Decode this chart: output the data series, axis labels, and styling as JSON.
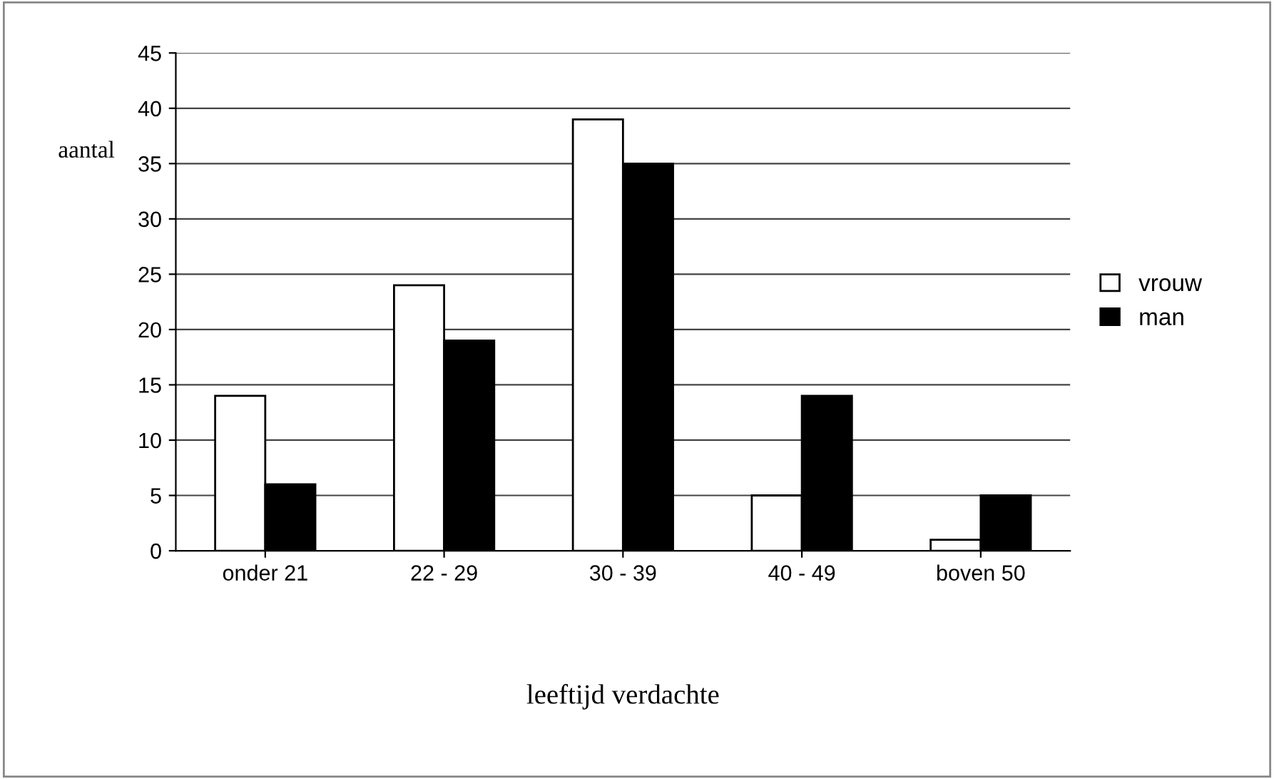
{
  "chart_data": {
    "type": "bar",
    "xlabel": "leeftijd verdachte",
    "ylabel": "aantal",
    "categories": [
      "onder 21",
      "22 - 29",
      "30 - 39",
      "40 - 49",
      "boven 50"
    ],
    "series": [
      {
        "name": "vrouw",
        "color": "#ffffff",
        "values": [
          14,
          24,
          39,
          5,
          1
        ]
      },
      {
        "name": "man",
        "color": "#000000",
        "values": [
          6,
          19,
          35,
          14,
          5
        ]
      }
    ],
    "ylim": [
      0,
      45
    ],
    "yticks": [
      0,
      5,
      10,
      15,
      20,
      25,
      30,
      35,
      40,
      45
    ],
    "grid": "y",
    "legend": "right"
  }
}
